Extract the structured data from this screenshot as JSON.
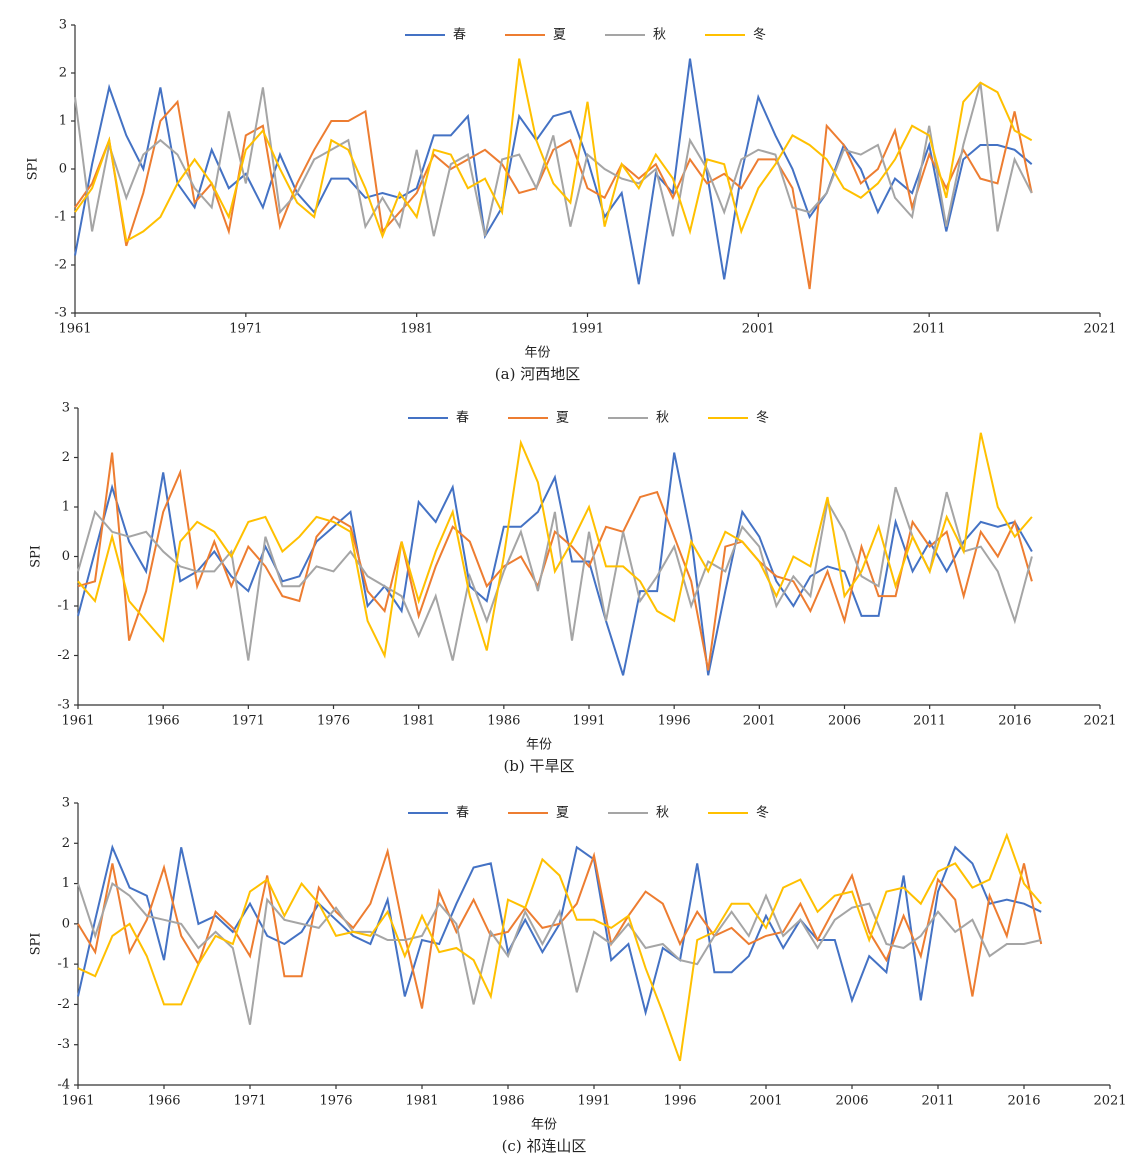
{
  "chart_data": [
    {
      "type": "line",
      "caption": "(a) 河西地区",
      "x_label": "年份",
      "y_label": "SPI",
      "legend": "top",
      "x": [
        1961,
        1962,
        1963,
        1964,
        1965,
        1966,
        1967,
        1968,
        1969,
        1970,
        1971,
        1972,
        1973,
        1974,
        1975,
        1976,
        1977,
        1978,
        1979,
        1980,
        1981,
        1982,
        1983,
        1984,
        1985,
        1986,
        1987,
        1988,
        1989,
        1990,
        1991,
        1992,
        1993,
        1994,
        1995,
        1996,
        1997,
        1998,
        1999,
        2000,
        2001,
        2002,
        2003,
        2004,
        2005,
        2006,
        2007,
        2008,
        2009,
        2010,
        2011,
        2012,
        2013,
        2014,
        2015,
        2016,
        2017
      ],
      "xlim": [
        1961,
        2021
      ],
      "xticks": [
        1961,
        1971,
        1981,
        1991,
        2001,
        2011,
        2021
      ],
      "ylim": [
        -3,
        3
      ],
      "yticks": [
        -3,
        -2,
        -1,
        0,
        1,
        2,
        3
      ],
      "series": [
        {
          "name": "春",
          "color": "#4472c4",
          "values": [
            -1.8,
            0.1,
            1.7,
            0.7,
            0.0,
            1.7,
            -0.3,
            -0.8,
            0.4,
            -0.4,
            -0.1,
            -0.8,
            0.3,
            -0.5,
            -0.9,
            -0.2,
            -0.2,
            -0.6,
            -0.5,
            -0.6,
            -0.4,
            0.7,
            0.7,
            1.1,
            -1.4,
            -0.8,
            1.1,
            0.6,
            1.1,
            1.2,
            0.2,
            -1.0,
            -0.5,
            -2.4,
            -0.1,
            -0.5,
            2.3,
            -0.1,
            -2.3,
            -0.1,
            1.5,
            0.7,
            0.0,
            -1.0,
            -0.5,
            0.5,
            0.0,
            -0.9,
            -0.2,
            -0.5,
            0.5,
            -1.3,
            0.2,
            0.5,
            0.5,
            0.4,
            0.1
          ]
        },
        {
          "name": "夏",
          "color": "#ed7d31",
          "values": [
            -0.8,
            -0.3,
            0.6,
            -1.6,
            -0.5,
            1.0,
            1.4,
            -0.7,
            -0.3,
            -1.3,
            0.7,
            0.9,
            -1.2,
            -0.3,
            0.4,
            1.0,
            1.0,
            1.2,
            -1.3,
            -0.9,
            -0.5,
            0.3,
            0.0,
            0.2,
            0.4,
            0.1,
            -0.5,
            -0.4,
            0.4,
            0.6,
            -0.4,
            -0.6,
            0.1,
            -0.2,
            0.1,
            -0.6,
            0.2,
            -0.3,
            -0.1,
            -0.4,
            0.2,
            0.2,
            -0.4,
            -2.5,
            0.9,
            0.5,
            -0.3,
            0.0,
            0.8,
            -0.8,
            0.3,
            -0.4,
            0.4,
            -0.2,
            -0.3,
            1.2,
            -0.5
          ]
        },
        {
          "name": "秋",
          "color": "#a5a5a5",
          "values": [
            1.5,
            -1.3,
            0.5,
            -0.6,
            0.3,
            0.6,
            0.3,
            -0.4,
            -0.8,
            1.2,
            -0.3,
            1.7,
            -0.9,
            -0.5,
            0.2,
            0.4,
            0.6,
            -1.2,
            -0.6,
            -1.2,
            0.4,
            -1.4,
            0.1,
            0.3,
            -1.4,
            0.2,
            0.3,
            -0.4,
            0.7,
            -1.2,
            0.3,
            0.0,
            -0.2,
            -0.3,
            0.0,
            -1.4,
            0.6,
            0.0,
            -0.9,
            0.2,
            0.4,
            0.3,
            -0.8,
            -0.9,
            -0.5,
            0.4,
            0.3,
            0.5,
            -0.6,
            -1.0,
            0.9,
            -1.2,
            0.5,
            1.8,
            -1.3,
            0.2,
            -0.5
          ]
        },
        {
          "name": "冬",
          "color": "#ffc000",
          "values": [
            -0.9,
            -0.4,
            0.6,
            -1.5,
            -1.3,
            -1.0,
            -0.3,
            0.2,
            -0.3,
            -1.0,
            0.4,
            0.8,
            0.0,
            -0.7,
            -1.0,
            0.6,
            0.4,
            -0.4,
            -1.4,
            -0.5,
            -1.0,
            0.4,
            0.3,
            -0.4,
            -0.2,
            -0.9,
            2.3,
            0.6,
            -0.3,
            -0.7,
            1.4,
            -1.2,
            0.1,
            -0.4,
            0.3,
            -0.2,
            -1.3,
            0.2,
            0.1,
            -1.3,
            -0.4,
            0.1,
            0.7,
            0.5,
            0.2,
            -0.4,
            -0.6,
            -0.3,
            0.2,
            0.9,
            0.7,
            -0.6,
            1.4,
            1.8,
            1.6,
            0.8,
            0.6
          ]
        }
      ]
    },
    {
      "type": "line",
      "caption": "(b) 干旱区",
      "x_label": "年份",
      "y_label": "SPI",
      "legend": "top",
      "x": [
        1961,
        1962,
        1963,
        1964,
        1965,
        1966,
        1967,
        1968,
        1969,
        1970,
        1971,
        1972,
        1973,
        1974,
        1975,
        1976,
        1977,
        1978,
        1979,
        1980,
        1981,
        1982,
        1983,
        1984,
        1985,
        1986,
        1987,
        1988,
        1989,
        1990,
        1991,
        1992,
        1993,
        1994,
        1995,
        1996,
        1997,
        1998,
        1999,
        2000,
        2001,
        2002,
        2003,
        2004,
        2005,
        2006,
        2007,
        2008,
        2009,
        2010,
        2011,
        2012,
        2013,
        2014,
        2015,
        2016,
        2017
      ],
      "xlim": [
        1961,
        2021
      ],
      "xticks": [
        1961,
        1966,
        1971,
        1976,
        1981,
        1986,
        1991,
        1996,
        2001,
        2006,
        2011,
        2016,
        2021
      ],
      "ylim": [
        -3,
        3
      ],
      "yticks": [
        -3,
        -2,
        -1,
        0,
        1,
        2,
        3
      ],
      "series": [
        {
          "name": "春",
          "color": "#4472c4",
          "values": [
            -1.2,
            0.1,
            1.4,
            0.3,
            -0.3,
            1.7,
            -0.5,
            -0.3,
            0.1,
            -0.4,
            -0.7,
            0.2,
            -0.5,
            -0.4,
            0.3,
            0.6,
            0.9,
            -1.0,
            -0.6,
            -1.1,
            1.1,
            0.7,
            1.4,
            -0.6,
            -0.9,
            0.6,
            0.6,
            0.9,
            1.6,
            -0.1,
            -0.1,
            -1.3,
            -2.4,
            -0.7,
            -0.7,
            2.1,
            0.4,
            -2.4,
            -0.7,
            0.9,
            0.4,
            -0.5,
            -1.0,
            -0.4,
            -0.2,
            -0.3,
            -1.2,
            -1.2,
            0.7,
            -0.3,
            0.3,
            -0.3,
            0.3,
            0.7,
            0.6,
            0.7,
            0.1
          ]
        },
        {
          "name": "夏",
          "color": "#ed7d31",
          "values": [
            -0.6,
            -0.5,
            2.1,
            -1.7,
            -0.7,
            0.9,
            1.7,
            -0.6,
            0.3,
            -0.6,
            0.2,
            -0.2,
            -0.8,
            -0.9,
            0.4,
            0.8,
            0.6,
            -0.7,
            -1.1,
            0.3,
            -1.2,
            -0.2,
            0.6,
            0.3,
            -0.6,
            -0.2,
            0.0,
            -0.6,
            0.5,
            0.2,
            -0.2,
            0.6,
            0.5,
            1.2,
            1.3,
            0.4,
            -0.5,
            -2.3,
            0.2,
            0.3,
            -0.1,
            -0.4,
            -0.5,
            -1.1,
            -0.3,
            -1.3,
            0.2,
            -0.8,
            -0.8,
            0.7,
            0.2,
            0.5,
            -0.8,
            0.5,
            0.0,
            0.7,
            -0.5
          ]
        },
        {
          "name": "秋",
          "color": "#a5a5a5",
          "values": [
            -0.3,
            0.9,
            0.5,
            0.4,
            0.5,
            0.1,
            -0.2,
            -0.3,
            -0.3,
            0.1,
            -2.1,
            0.4,
            -0.6,
            -0.6,
            -0.2,
            -0.3,
            0.1,
            -0.4,
            -0.6,
            -0.8,
            -1.6,
            -0.8,
            -2.1,
            -0.4,
            -1.3,
            -0.3,
            0.5,
            -0.7,
            0.9,
            -1.7,
            0.5,
            -1.3,
            0.5,
            -0.9,
            -0.4,
            0.2,
            -1.0,
            -0.1,
            -0.3,
            0.6,
            0.2,
            -1.0,
            -0.4,
            -0.8,
            1.1,
            0.5,
            -0.4,
            -0.6,
            1.4,
            0.4,
            -0.3,
            1.3,
            0.1,
            0.2,
            -0.3,
            -1.3,
            0.0
          ]
        },
        {
          "name": "冬",
          "color": "#ffc000",
          "values": [
            -0.5,
            -0.9,
            0.4,
            -0.9,
            -1.3,
            -1.7,
            0.3,
            0.7,
            0.5,
            0.0,
            0.7,
            0.8,
            0.1,
            0.4,
            0.8,
            0.7,
            0.5,
            -1.3,
            -2.0,
            0.3,
            -0.9,
            0.1,
            0.9,
            -0.8,
            -1.9,
            0.0,
            2.3,
            1.5,
            -0.3,
            0.3,
            1.0,
            -0.2,
            -0.2,
            -0.5,
            -1.1,
            -1.3,
            0.3,
            -0.3,
            0.5,
            0.3,
            -0.1,
            -0.8,
            0.0,
            -0.2,
            1.2,
            -0.8,
            -0.3,
            0.6,
            -0.6,
            0.4,
            -0.3,
            0.8,
            0.1,
            2.5,
            1.0,
            0.4,
            0.8
          ]
        }
      ]
    },
    {
      "type": "line",
      "caption": "(c) 祁连山区",
      "x_label": "年份",
      "y_label": "SPI",
      "legend": "top",
      "x": [
        1961,
        1962,
        1963,
        1964,
        1965,
        1966,
        1967,
        1968,
        1969,
        1970,
        1971,
        1972,
        1973,
        1974,
        1975,
        1976,
        1977,
        1978,
        1979,
        1980,
        1981,
        1982,
        1983,
        1984,
        1985,
        1986,
        1987,
        1988,
        1989,
        1990,
        1991,
        1992,
        1993,
        1994,
        1995,
        1996,
        1997,
        1998,
        1999,
        2000,
        2001,
        2002,
        2003,
        2004,
        2005,
        2006,
        2007,
        2008,
        2009,
        2010,
        2011,
        2012,
        2013,
        2014,
        2015,
        2016,
        2017
      ],
      "xlim": [
        1961,
        2021
      ],
      "xticks": [
        1961,
        1966,
        1971,
        1976,
        1981,
        1986,
        1991,
        1996,
        2001,
        2006,
        2011,
        2016,
        2021
      ],
      "ylim": [
        -4,
        3
      ],
      "yticks": [
        -4,
        -3,
        -2,
        -1,
        0,
        1,
        2,
        3
      ],
      "series": [
        {
          "name": "春",
          "color": "#4472c4",
          "values": [
            -1.8,
            0.1,
            1.9,
            0.9,
            0.7,
            -0.9,
            1.9,
            0.0,
            0.2,
            -0.2,
            0.5,
            -0.3,
            -0.5,
            -0.2,
            0.5,
            0.1,
            -0.3,
            -0.5,
            0.6,
            -1.8,
            -0.4,
            -0.5,
            0.5,
            1.4,
            1.5,
            -0.7,
            0.1,
            -0.7,
            0.0,
            1.9,
            1.6,
            -0.9,
            -0.5,
            -2.2,
            -0.6,
            -0.9,
            1.5,
            -1.2,
            -1.2,
            -0.8,
            0.2,
            -0.6,
            0.1,
            -0.4,
            -0.4,
            -1.9,
            -0.8,
            -1.2,
            1.2,
            -1.9,
            0.8,
            1.9,
            1.5,
            0.5,
            0.6,
            0.5,
            0.3
          ]
        },
        {
          "name": "夏",
          "color": "#ed7d31",
          "values": [
            0.0,
            -0.7,
            1.5,
            -0.7,
            0.1,
            1.4,
            -0.3,
            -1.0,
            0.3,
            -0.1,
            -0.8,
            1.2,
            -1.3,
            -1.3,
            0.9,
            0.3,
            -0.1,
            0.5,
            1.8,
            -0.3,
            -2.1,
            0.8,
            -0.2,
            0.6,
            -0.3,
            -0.2,
            0.4,
            -0.1,
            0.0,
            0.5,
            1.7,
            -0.5,
            0.2,
            0.8,
            0.5,
            -0.5,
            0.3,
            -0.3,
            -0.1,
            -0.5,
            -0.3,
            -0.2,
            0.5,
            -0.4,
            0.4,
            1.2,
            -0.2,
            -0.9,
            0.2,
            -0.8,
            1.1,
            0.6,
            -1.8,
            0.7,
            -0.3,
            1.5,
            -0.5
          ]
        },
        {
          "name": "秋",
          "color": "#a5a5a5",
          "values": [
            1.0,
            -0.3,
            1.0,
            0.7,
            0.2,
            0.1,
            0.0,
            -0.6,
            -0.2,
            -0.6,
            -2.5,
            0.6,
            0.1,
            0.0,
            -0.1,
            0.4,
            -0.2,
            -0.2,
            -0.4,
            -0.4,
            -0.3,
            0.5,
            0.0,
            -2.0,
            -0.2,
            -0.8,
            0.3,
            -0.5,
            0.3,
            -1.7,
            -0.2,
            -0.5,
            0.0,
            -0.6,
            -0.5,
            -0.9,
            -1.0,
            -0.3,
            0.3,
            -0.3,
            0.7,
            -0.3,
            0.1,
            -0.6,
            0.1,
            0.4,
            0.5,
            -0.5,
            -0.6,
            -0.3,
            0.3,
            -0.2,
            0.1,
            -0.8,
            -0.5,
            -0.5,
            -0.4
          ]
        },
        {
          "name": "冬",
          "color": "#ffc000",
          "values": [
            -1.1,
            -1.3,
            -0.3,
            0.0,
            -0.8,
            -2.0,
            -2.0,
            -1.0,
            -0.3,
            -0.5,
            0.8,
            1.1,
            0.2,
            1.0,
            0.5,
            -0.3,
            -0.2,
            -0.3,
            0.3,
            -0.8,
            0.2,
            -0.7,
            -0.6,
            -0.9,
            -1.8,
            0.6,
            0.4,
            1.6,
            1.2,
            0.1,
            0.1,
            -0.1,
            0.2,
            -1.1,
            -2.2,
            -3.4,
            -0.4,
            -0.2,
            0.5,
            0.5,
            -0.1,
            0.9,
            1.1,
            0.3,
            0.7,
            0.8,
            -0.4,
            0.8,
            0.9,
            0.5,
            1.3,
            1.5,
            0.9,
            1.1,
            2.2,
            1.0,
            0.5
          ]
        }
      ]
    }
  ]
}
